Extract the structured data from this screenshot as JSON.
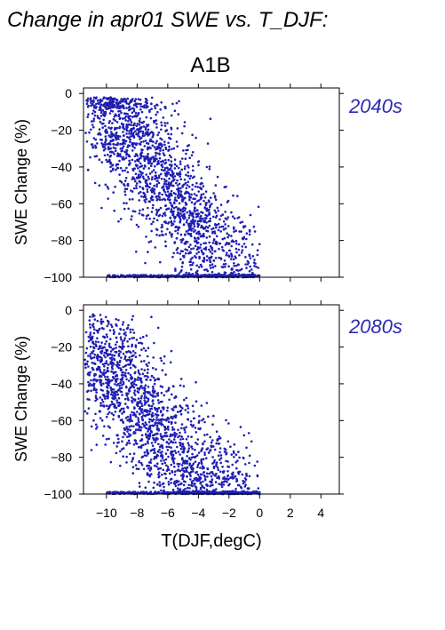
{
  "title": "Change in apr01 SWE vs. T_DJF:",
  "scenario": "A1B",
  "xlabel": "T(DJF,degC)",
  "colors": {
    "points": "#1f1fb4",
    "period_label": "#2a2ab4"
  },
  "chart_data": [
    {
      "type": "scatter",
      "period": "2040s",
      "ylabel": "SWE Change (%)",
      "xlim": [
        -11.5,
        5.2
      ],
      "ylim": [
        -100,
        3
      ],
      "xticks": [
        -10,
        -8,
        -6,
        -4,
        -2,
        0,
        2,
        4
      ],
      "xticklabels": [
        "−10",
        "−8",
        "−6",
        "−4",
        "−2",
        "0",
        "2",
        "4"
      ],
      "yticks": [
        0,
        -20,
        -40,
        -60,
        -80,
        -100
      ],
      "yticklabels": [
        "0",
        "−20",
        "−40",
        "−60",
        "−80",
        "−100"
      ],
      "grid": false,
      "density_anchors": [
        {
          "x": -10.5,
          "y": -10
        },
        {
          "x": -10,
          "y": -12
        },
        {
          "x": -9.5,
          "y": -15
        },
        {
          "x": -9,
          "y": -20
        },
        {
          "x": -8.5,
          "y": -25
        },
        {
          "x": -8,
          "y": -28
        },
        {
          "x": -7.5,
          "y": -32
        },
        {
          "x": -7,
          "y": -38
        },
        {
          "x": -6.5,
          "y": -45
        },
        {
          "x": -6,
          "y": -52
        },
        {
          "x": -5.5,
          "y": -58
        },
        {
          "x": -5,
          "y": -62
        },
        {
          "x": -4.5,
          "y": -68
        },
        {
          "x": -4,
          "y": -75
        },
        {
          "x": -3.5,
          "y": -82
        },
        {
          "x": -3,
          "y": -88
        },
        {
          "x": -2,
          "y": -94
        },
        {
          "x": -1,
          "y": -97
        }
      ]
    },
    {
      "type": "scatter",
      "period": "2080s",
      "ylabel": "SWE Change (%)",
      "xlim": [
        -11.5,
        5.2
      ],
      "ylim": [
        -100,
        3
      ],
      "xticks": [
        -10,
        -8,
        -6,
        -4,
        -2,
        0,
        2,
        4
      ],
      "xticklabels": [
        "−10",
        "−8",
        "−6",
        "−4",
        "−2",
        "0",
        "2",
        "4"
      ],
      "yticks": [
        0,
        -20,
        -40,
        -60,
        -80,
        -100
      ],
      "yticklabels": [
        "0",
        "−20",
        "−40",
        "−60",
        "−80",
        "−100"
      ],
      "grid": false,
      "density_anchors": [
        {
          "x": -11,
          "y": -30
        },
        {
          "x": -10.5,
          "y": -28
        },
        {
          "x": -10,
          "y": -35
        },
        {
          "x": -9.5,
          "y": -30
        },
        {
          "x": -9,
          "y": -38
        },
        {
          "x": -8.5,
          "y": -45
        },
        {
          "x": -8,
          "y": -50
        },
        {
          "x": -7.5,
          "y": -55
        },
        {
          "x": -7,
          "y": -62
        },
        {
          "x": -6.5,
          "y": -68
        },
        {
          "x": -6,
          "y": -74
        },
        {
          "x": -5.5,
          "y": -80
        },
        {
          "x": -5,
          "y": -86
        },
        {
          "x": -4.5,
          "y": -90
        },
        {
          "x": -4,
          "y": -93
        },
        {
          "x": -3,
          "y": -96
        },
        {
          "x": -2,
          "y": -98
        },
        {
          "x": -1,
          "y": -99
        }
      ]
    }
  ]
}
